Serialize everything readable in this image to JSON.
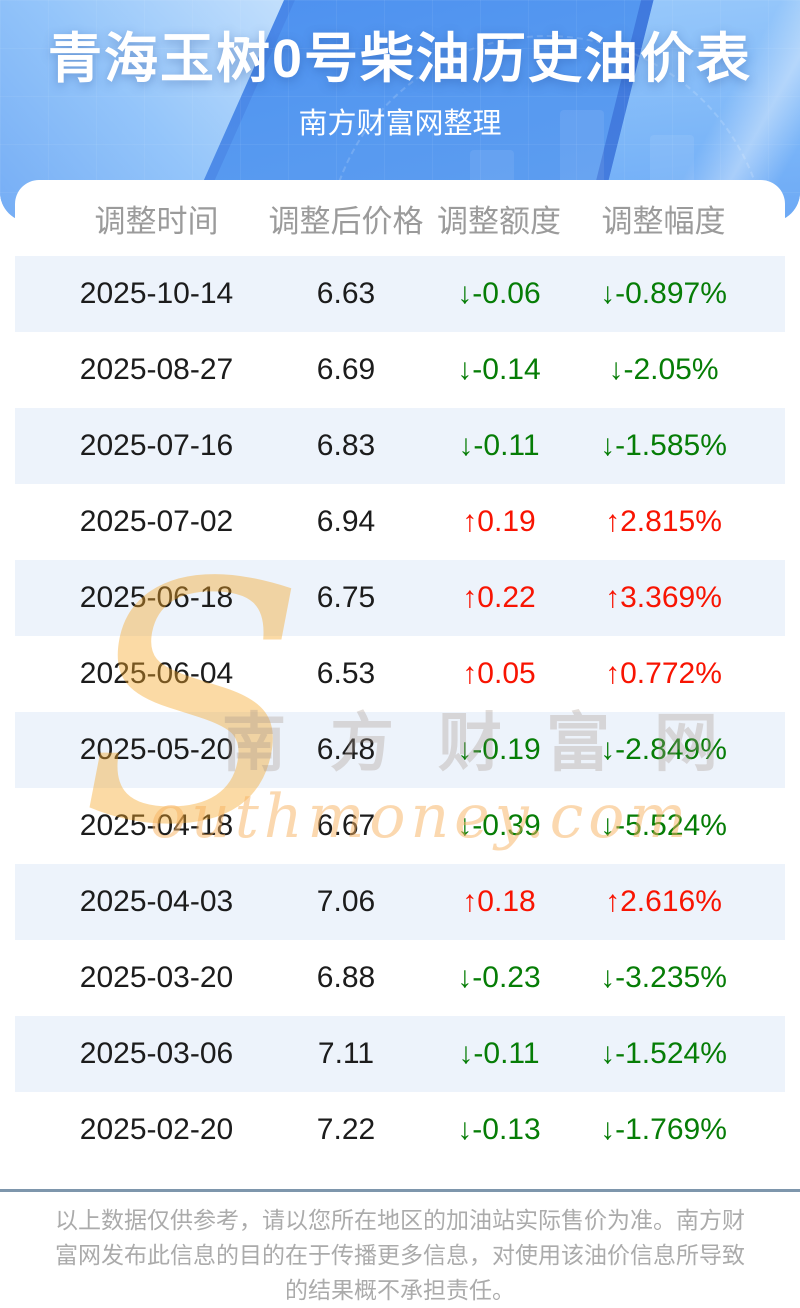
{
  "header": {
    "title": "青海玉树0号柴油历史油价表",
    "subtitle": "南方财富网整理"
  },
  "table": {
    "columns": [
      "调整时间",
      "调整后价格",
      "调整额度",
      "调整幅度"
    ],
    "rows": [
      {
        "date": "2025-10-14",
        "price": "6.63",
        "change": "↓-0.06",
        "rate": "↓-0.897%",
        "dir": "down"
      },
      {
        "date": "2025-08-27",
        "price": "6.69",
        "change": "↓-0.14",
        "rate": "↓-2.05%",
        "dir": "down"
      },
      {
        "date": "2025-07-16",
        "price": "6.83",
        "change": "↓-0.11",
        "rate": "↓-1.585%",
        "dir": "down"
      },
      {
        "date": "2025-07-02",
        "price": "6.94",
        "change": "↑0.19",
        "rate": "↑2.815%",
        "dir": "up"
      },
      {
        "date": "2025-06-18",
        "price": "6.75",
        "change": "↑0.22",
        "rate": "↑3.369%",
        "dir": "up"
      },
      {
        "date": "2025-06-04",
        "price": "6.53",
        "change": "↑0.05",
        "rate": "↑0.772%",
        "dir": "up"
      },
      {
        "date": "2025-05-20",
        "price": "6.48",
        "change": "↓-0.19",
        "rate": "↓-2.849%",
        "dir": "down"
      },
      {
        "date": "2025-04-18",
        "price": "6.67",
        "change": "↓-0.39",
        "rate": "↓-5.524%",
        "dir": "down"
      },
      {
        "date": "2025-04-03",
        "price": "7.06",
        "change": "↑0.18",
        "rate": "↑2.616%",
        "dir": "up"
      },
      {
        "date": "2025-03-20",
        "price": "6.88",
        "change": "↓-0.23",
        "rate": "↓-3.235%",
        "dir": "down"
      },
      {
        "date": "2025-03-06",
        "price": "7.11",
        "change": "↓-0.11",
        "rate": "↓-1.524%",
        "dir": "down"
      },
      {
        "date": "2025-02-20",
        "price": "7.22",
        "change": "↓-0.13",
        "rate": "↓-1.769%",
        "dir": "down"
      }
    ]
  },
  "watermark": {
    "s": "S",
    "cjk": "南方财富网",
    "latin": "outhmoney.com"
  },
  "footer": {
    "lines": [
      "以上数据仅供参考，请以您所在地区的加油站实际售价为准。南方财",
      "富网发布此信息的目的在于传播更多信息，对使用该油价信息所导致",
      "的结果概不承担责任。"
    ]
  },
  "colors": {
    "banner_blue_top": "#4a8eef",
    "banner_blue_bottom": "#61a0f0",
    "row_alt_blue": "#edf3fb",
    "up_red": "#f81402",
    "down_green": "#067d06",
    "column_header_gray": "#9b9b9b",
    "divider_steel_blue": "#7e96ac",
    "footer_gray": "#ababab",
    "watermark_orange": "#f6a828"
  },
  "chart_data": {
    "type": "table",
    "title": "青海玉树0号柴油历史油价表",
    "subtitle": "南方财富网整理",
    "columns": [
      "调整时间",
      "调整后价格",
      "调整额度",
      "调整幅度"
    ],
    "rows": [
      [
        "2025-10-14",
        6.63,
        -0.06,
        "-0.897%"
      ],
      [
        "2025-08-27",
        6.69,
        -0.14,
        "-2.05%"
      ],
      [
        "2025-07-16",
        6.83,
        -0.11,
        "-1.585%"
      ],
      [
        "2025-07-02",
        6.94,
        0.19,
        "2.815%"
      ],
      [
        "2025-06-18",
        6.75,
        0.22,
        "3.369%"
      ],
      [
        "2025-06-04",
        6.53,
        0.05,
        "0.772%"
      ],
      [
        "2025-05-20",
        6.48,
        -0.19,
        "-2.849%"
      ],
      [
        "2025-04-18",
        6.67,
        -0.39,
        "-5.524%"
      ],
      [
        "2025-04-03",
        7.06,
        0.18,
        "2.616%"
      ],
      [
        "2025-03-20",
        6.88,
        -0.23,
        "-3.235%"
      ],
      [
        "2025-03-06",
        7.11,
        -0.11,
        "-1.524%"
      ],
      [
        "2025-02-20",
        7.22,
        -0.13,
        "-1.769%"
      ]
    ],
    "legend": "red = price increase (↑), green = price decrease (↓)"
  }
}
